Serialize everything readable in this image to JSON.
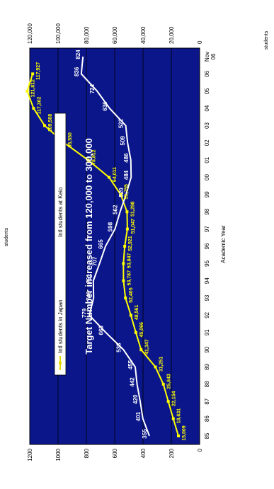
{
  "chart_data": {
    "type": "line",
    "title": "",
    "subtitle": "",
    "xlabel": "Academic Year",
    "ylabel_left": "students",
    "ylabel_right": "students",
    "annotation": "Target Number increased from 120,000 to 300,000",
    "categories": [
      "85",
      "86",
      "87",
      "88",
      "89",
      "90",
      "91",
      "92",
      "93",
      "94",
      "95",
      "96",
      "97",
      "98",
      "99",
      "00",
      "01",
      "02",
      "03",
      "04",
      "05",
      "06",
      "Nov 06"
    ],
    "left_axis": {
      "min": 0,
      "max": 1200,
      "ticks": [
        0,
        200,
        400,
        600,
        800,
        1000,
        1200
      ],
      "tick_labels": [
        "0",
        "200",
        "400",
        "600",
        "800",
        "1000",
        "1200"
      ]
    },
    "right_axis": {
      "min": 0,
      "max": 120000,
      "ticks": [
        0,
        20000,
        40000,
        60000,
        80000,
        100000,
        120000
      ],
      "tick_labels": [
        "0",
        "20,000",
        "40,000",
        "60,000",
        "80,000",
        "100,000",
        "120,000"
      ]
    },
    "grid": true,
    "legend_position": "top",
    "series": [
      {
        "name": "Intl students in Japan",
        "axis": "right",
        "color": "#ffff00",
        "values": [
          15009,
          18631,
          22154,
          25643,
          31251,
          41347,
          45066,
          48561,
          52405,
          53787,
          53847,
          52921,
          51047,
          51298,
          55755,
          64011,
          78812,
          95550,
          109508,
          117302,
          121812,
          117927,
          null
        ],
        "labels": [
          "15,009",
          "18,631",
          "22,154",
          "25,643",
          "31,251",
          "41,347",
          "45,066",
          "48,561",
          "52,405",
          "53,787",
          "53,847",
          "52,921",
          "51,047",
          "51,298",
          "55,755",
          "64,011",
          "78,812",
          "95,550",
          "109,508",
          "117,302",
          "121,812",
          "117,927",
          ""
        ]
      },
      {
        "name": "Intl students at Keio",
        "axis": "left",
        "color": "#ffffff",
        "values": [
          355,
          401,
          420,
          442,
          455,
          538,
          663,
          779,
          749,
          751,
          707,
          665,
          598,
          562,
          520,
          484,
          486,
          509,
          522,
          636,
          724,
          836,
          824
        ],
        "labels": [
          "355",
          "401",
          "420",
          "442",
          "455",
          "538",
          "663",
          "779",
          "749",
          "751",
          "707",
          "665",
          "598",
          "562",
          "520",
          "484",
          "486",
          "509",
          "522",
          "636",
          "724",
          "836",
          "824"
        ]
      }
    ]
  },
  "colors": {
    "plot_bg": "#0b168a",
    "grid": "#000000",
    "border": "#000000"
  }
}
